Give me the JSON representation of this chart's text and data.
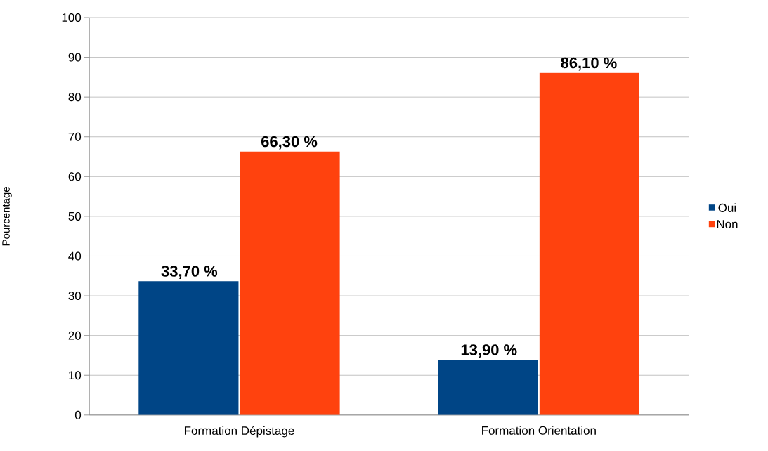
{
  "chart_data": {
    "type": "bar",
    "ylabel": "Pourcentage",
    "categories": [
      "Formation Dépistage",
      "Formation Orientation"
    ],
    "series": [
      {
        "name": "Oui",
        "color": "#004586",
        "values": [
          33.7,
          13.9
        ],
        "value_labels": [
          "33,70 %",
          "13,90 %"
        ]
      },
      {
        "name": "Non",
        "color": "#ff420e",
        "values": [
          66.3,
          86.1
        ],
        "value_labels": [
          "66,30 %",
          "86,10 %"
        ]
      }
    ],
    "ylim": [
      0,
      100
    ],
    "yticks": [
      0,
      10,
      20,
      30,
      40,
      50,
      60,
      70,
      80,
      90,
      100
    ],
    "grid": "y",
    "legend": "right"
  }
}
